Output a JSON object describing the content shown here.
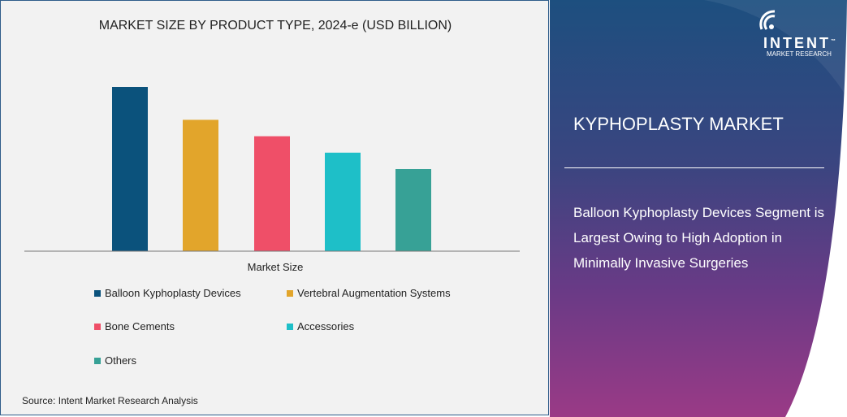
{
  "chart_data": {
    "type": "bar",
    "title": "MARKET SIZE BY PRODUCT TYPE, 2024-e (USD BILLION)",
    "xlabel": "Market Size",
    "ylabel": "",
    "categories": [
      "Balloon Kyphoplasty Devices",
      "Vertebral Augmentation Systems",
      "Bone Cements",
      "Accessories",
      "Others"
    ],
    "values": [
      100,
      80,
      70,
      60,
      50
    ],
    "colors": [
      "#0b527c",
      "#e2a52b",
      "#ef4f68",
      "#1ebfc8",
      "#37a196"
    ],
    "ylim": [
      0,
      100
    ],
    "grid": false,
    "legend_placement": "bottom"
  },
  "source": "Source:  Intent Market Research Analysis",
  "panel": {
    "title": "KYPHOPLASTY MARKET",
    "text": "Balloon Kyphoplasty Devices Segment is Largest Owing to High Adoption in Minimally Invasive Surgeries"
  },
  "logo": {
    "name": "INTENT",
    "sub": "MARKET RESEARCH",
    "tm": "™"
  }
}
